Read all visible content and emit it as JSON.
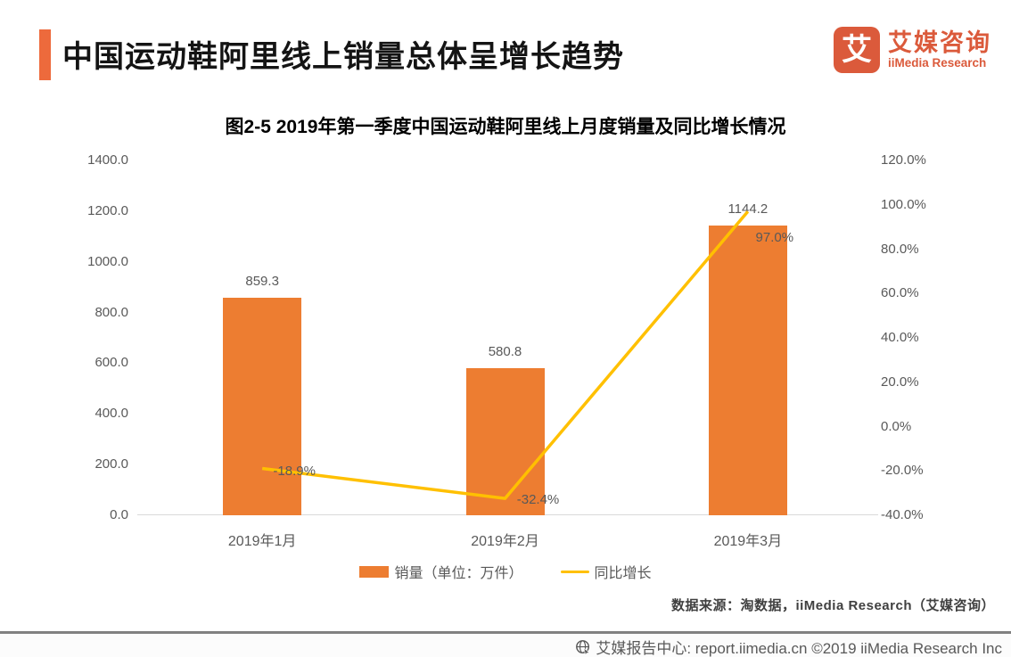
{
  "header": {
    "title": "中国运动鞋阿里线上销量总体呈增长趋势",
    "logo": {
      "mark_glyph": "艾",
      "brand_cn": "艾媒咨询",
      "brand_en": "iiMedia Research"
    }
  },
  "chart_data": {
    "type": "bar",
    "combo": "bar+line",
    "title": "图2-5 2019年第一季度中国运动鞋阿里线上月度销量及同比增长情况",
    "categories": [
      "2019年1月",
      "2019年2月",
      "2019年3月"
    ],
    "series": [
      {
        "name": "销量（单位：万件）",
        "type": "bar",
        "axis": "left",
        "color": "#ED7D31",
        "values": [
          859.3,
          580.8,
          1144.2
        ],
        "data_labels": [
          "859.3",
          "580.8",
          "1144.2"
        ]
      },
      {
        "name": "同比增长",
        "type": "line",
        "axis": "right",
        "color": "#FFC000",
        "values": [
          -18.9,
          -32.4,
          97.0
        ],
        "data_labels": [
          "-18.9%",
          "-32.4%",
          "97.0%"
        ]
      }
    ],
    "left_axis": {
      "min": 0,
      "max": 1400,
      "step": 200,
      "tick_labels": [
        "0.0",
        "200.0",
        "400.0",
        "600.0",
        "800.0",
        "1000.0",
        "1200.0",
        "1400.0"
      ]
    },
    "right_axis": {
      "min": -40,
      "max": 120,
      "step": 20,
      "tick_labels": [
        "-40.0%",
        "-20.0%",
        "0.0%",
        "20.0%",
        "40.0%",
        "60.0%",
        "80.0%",
        "100.0%",
        "120.0%"
      ]
    },
    "grid": false,
    "legend_position": "bottom"
  },
  "source_note": "数据来源：淘数据，iiMedia Research（艾媒咨询）",
  "footer": {
    "text": "艾媒报告中心: report.iimedia.cn  ©2019  iiMedia Research Inc"
  },
  "colors": {
    "accent_orange": "#ED6A3C",
    "bar_orange": "#ED7D31",
    "line_yellow": "#FFC000",
    "brand_orange": "#DB5A3B"
  }
}
